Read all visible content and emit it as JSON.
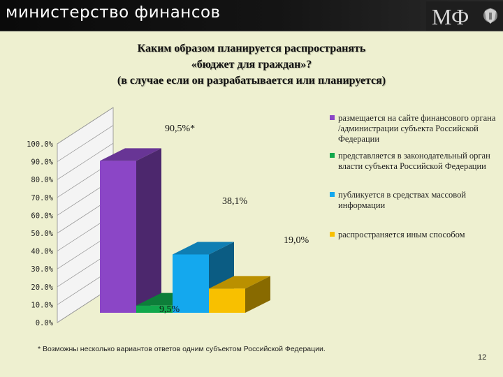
{
  "header": {
    "title": "министерство финансов",
    "logo_text": "МФ"
  },
  "slide": {
    "title_lines": [
      "Каким образом планируется распространять",
      "«бюджет для граждан»?",
      "(в случае если он разрабатывается или планируется)"
    ],
    "footnote": "* Возможны несколько вариантов ответов одним субъектом Российской Федерации.",
    "page_number": "12"
  },
  "chart_data": {
    "type": "bar",
    "title": "",
    "xlabel": "",
    "ylabel": "",
    "ylim": [
      0,
      100
    ],
    "y_ticks": [
      "0.0%",
      "10.0%",
      "20.0%",
      "30.0%",
      "40.0%",
      "50.0%",
      "60.0%",
      "70.0%",
      "80.0%",
      "90.0%",
      "100.0%"
    ],
    "categories": [
      ""
    ],
    "series": [
      {
        "name": "размещается на сайте финансового органа /администрации субъекта Российской Федерации",
        "values": [
          90.5
        ],
        "label": "90,5%*",
        "color": "#8b46c6"
      },
      {
        "name": "представляется в законодательный орган власти субъекта Российской Федерации",
        "values": [
          9.5
        ],
        "label": "9,5%",
        "color": "#11a84c"
      },
      {
        "name": "публикуется в средствах массовой информации",
        "values": [
          38.1
        ],
        "label": "38,1%",
        "color": "#14a8ee"
      },
      {
        "name": "распространяется иным способом",
        "values": [
          19.0
        ],
        "label": "19,0%",
        "color": "#f8c000"
      }
    ],
    "grid": false,
    "legend_position": "right"
  }
}
